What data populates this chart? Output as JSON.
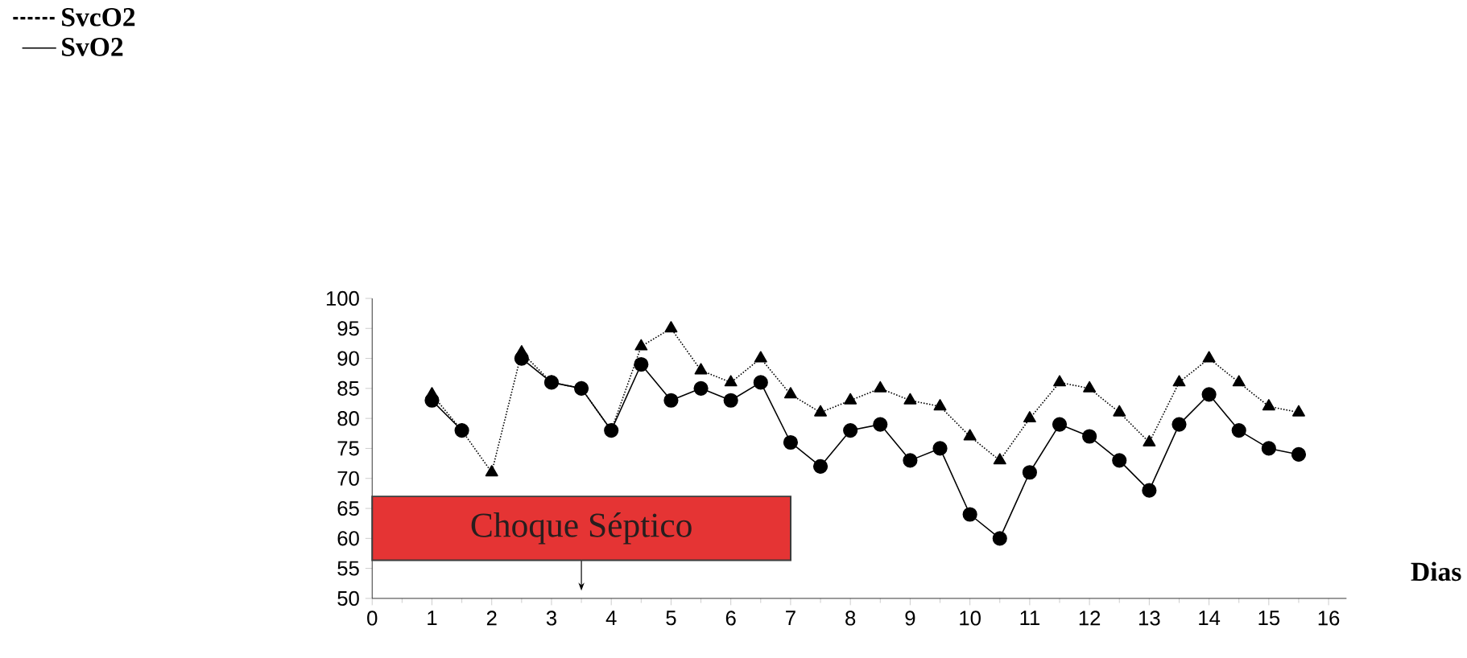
{
  "chart_data": {
    "type": "line",
    "xlabel": "Dias",
    "x": [
      1,
      1.5,
      2,
      2.5,
      3,
      3.5,
      4,
      4.5,
      5,
      5.5,
      6,
      6.5,
      7,
      7.5,
      8,
      8.5,
      9,
      9.5,
      10,
      10.5,
      11,
      11.5,
      12,
      12.5,
      13,
      13.5,
      14,
      14.5,
      15,
      15.5
    ],
    "series": [
      {
        "name": "SvcO2",
        "color": "#000000",
        "marker": "triangle",
        "line_style": "dotted",
        "values": [
          84,
          78,
          71,
          91,
          86,
          85,
          78,
          92,
          95,
          88,
          86,
          90,
          84,
          81,
          83,
          85,
          83,
          82,
          77,
          73,
          80,
          86,
          85,
          81,
          76,
          86,
          90,
          86,
          82,
          81
        ]
      },
      {
        "name": "SvO2",
        "color": "#000000",
        "marker": "circle",
        "line_style": "solid",
        "values": [
          83,
          78,
          null,
          90,
          86,
          85,
          78,
          89,
          83,
          85,
          83,
          86,
          76,
          72,
          78,
          79,
          73,
          75,
          64,
          60,
          71,
          79,
          77,
          73,
          68,
          79,
          84,
          78,
          75,
          74
        ]
      }
    ],
    "xlim": [
      0,
      16.3
    ],
    "ylim": [
      50,
      100
    ],
    "xticks": [
      0,
      1,
      2,
      3,
      4,
      5,
      6,
      7,
      8,
      9,
      10,
      11,
      12,
      13,
      14,
      15,
      16
    ],
    "yticks": [
      50,
      55,
      60,
      65,
      70,
      75,
      80,
      85,
      90,
      95,
      100
    ],
    "legend": "top left",
    "grid": false,
    "annotations": [
      {
        "text": "Choque Séptico",
        "x": 3.5
      }
    ]
  }
}
